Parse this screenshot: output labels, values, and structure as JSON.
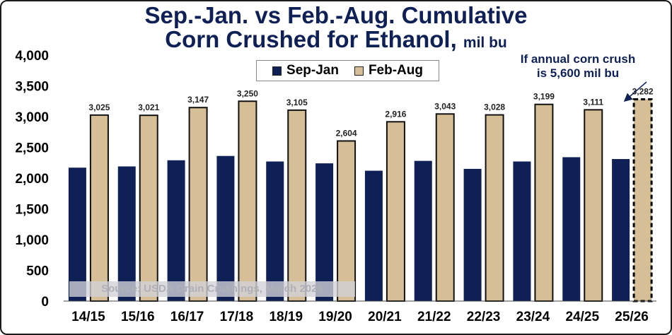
{
  "title_line1": "Sep.-Jan. vs Feb.-Aug. Cumulative",
  "title_line2": "Corn Crushed for Ethanol,",
  "title_unit": "mil bu",
  "annotation": [
    "If annual corn crush",
    "is 5,600 mil bu"
  ],
  "source": "Source: USDA Grain Crushings, March 2026",
  "colors": {
    "sep_jan": "#0f2057",
    "feb_aug": "#d6bf96",
    "title": "#0f2057",
    "projected_border": "#000000"
  },
  "chart_data": {
    "type": "bar",
    "title": "Sep.-Jan. vs Feb.-Aug. Cumulative Corn Crushed for Ethanol, mil bu",
    "categories": [
      "14/15",
      "15/16",
      "16/17",
      "17/18",
      "18/19",
      "19/20",
      "20/21",
      "21/22",
      "22/23",
      "23/24",
      "24/25",
      "25/26"
    ],
    "series": [
      {
        "name": "Sep-Jan",
        "values": [
          2170,
          2190,
          2290,
          2360,
          2270,
          2240,
          2120,
          2280,
          2150,
          2270,
          2340,
          2310
        ]
      },
      {
        "name": "Feb-Aug",
        "values": [
          3025,
          3021,
          3147,
          3250,
          3105,
          2604,
          2916,
          3043,
          3028,
          3199,
          3111,
          3282
        ],
        "labels": [
          "3,025",
          "3,021",
          "3,147",
          "3,250",
          "3,105",
          "2,604",
          "2,916",
          "3,043",
          "3,028",
          "3,199",
          "3,111",
          "3,282"
        ]
      }
    ],
    "projected_category": "25/26",
    "y_ticks": [
      "0",
      "500",
      "1,000",
      "1,500",
      "2,000",
      "2,500",
      "3,000",
      "3,500",
      "4,000"
    ],
    "ylim": [
      0,
      4000
    ],
    "legend": [
      "Sep-Jan",
      "Feb-Aug"
    ],
    "legend_position": "top-center",
    "grid": false
  }
}
